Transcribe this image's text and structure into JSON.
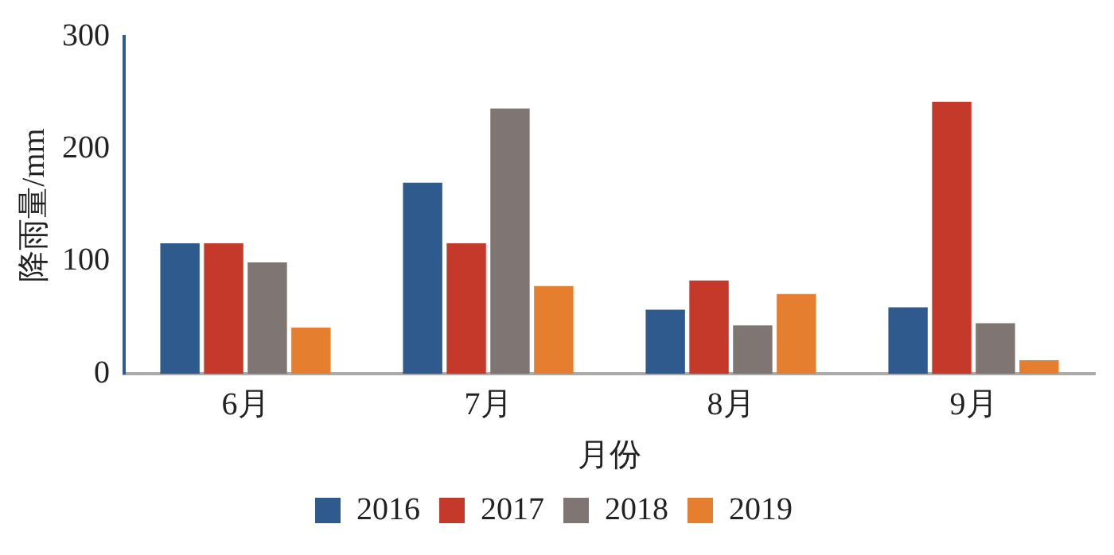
{
  "chart_data": {
    "type": "bar",
    "xlabel": "月份",
    "ylabel": "降雨量/mm",
    "categories": [
      "6月",
      "7月",
      "8月",
      "9月"
    ],
    "series": [
      {
        "name": "2016",
        "color": "#2e5a8e",
        "values": [
          116,
          170,
          57,
          59
        ]
      },
      {
        "name": "2017",
        "color": "#c5392a",
        "values": [
          116,
          116,
          83,
          242
        ]
      },
      {
        "name": "2018",
        "color": "#7f7674",
        "values": [
          99,
          236,
          43,
          45
        ]
      },
      {
        "name": "2019",
        "color": "#e67e30",
        "values": [
          41,
          78,
          71,
          12
        ]
      }
    ],
    "ylim": [
      0,
      300
    ],
    "yticks": [
      0,
      100,
      200,
      300
    ],
    "grid": false,
    "legend": "bottom"
  }
}
